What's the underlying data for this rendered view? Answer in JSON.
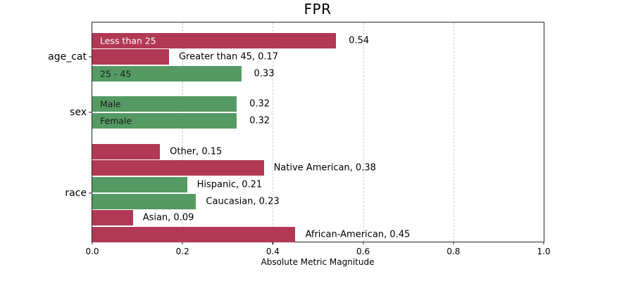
{
  "chart_data": {
    "type": "bar",
    "orientation": "horizontal",
    "title": "FPR",
    "xlabel": "Absolute Metric Magnitude",
    "xlim": [
      0,
      1
    ],
    "xtick_labels": [
      "0.0",
      "0.2",
      "0.4",
      "0.6",
      "0.8",
      "1.0"
    ],
    "grid": "dashed-vertical",
    "colors": {
      "red": "#b13954",
      "green": "#569a63",
      "grid": "#cccccc",
      "axis": "#262626",
      "text": "#000000"
    },
    "groups": [
      {
        "label": "age_cat",
        "bars": [
          {
            "name": "Less than 25",
            "value": 0.54,
            "color": "red",
            "inside_text": "Less than 25",
            "inside_text_color": "#ffffff",
            "outside_text": "0.54"
          },
          {
            "name": "Greater than 45",
            "value": 0.17,
            "color": "red",
            "inside_text": null,
            "outside_text": "Greater than 45, 0.17"
          },
          {
            "name": "25 - 45",
            "value": 0.33,
            "color": "green",
            "inside_text": "25 - 45",
            "inside_text_color": "#1a1a1a",
            "outside_text": "0.33"
          }
        ]
      },
      {
        "label": "sex",
        "bars": [
          {
            "name": "Male",
            "value": 0.32,
            "color": "green",
            "inside_text": "Male",
            "inside_text_color": "#1a1a1a",
            "outside_text": "0.32"
          },
          {
            "name": "Female",
            "value": 0.32,
            "color": "green",
            "inside_text": "Female",
            "inside_text_color": "#1a1a1a",
            "outside_text": "0.32"
          }
        ]
      },
      {
        "label": "race",
        "bars": [
          {
            "name": "Other",
            "value": 0.15,
            "color": "red",
            "inside_text": null,
            "outside_text": "Other, 0.15"
          },
          {
            "name": "Native American",
            "value": 0.38,
            "color": "red",
            "inside_text": null,
            "outside_text": "Native American, 0.38"
          },
          {
            "name": "Hispanic",
            "value": 0.21,
            "color": "green",
            "inside_text": null,
            "outside_text": "Hispanic, 0.21"
          },
          {
            "name": "Caucasian",
            "value": 0.23,
            "color": "green",
            "inside_text": null,
            "outside_text": "Caucasian, 0.23"
          },
          {
            "name": "Asian",
            "value": 0.09,
            "color": "red",
            "inside_text": null,
            "outside_text": "Asian, 0.09"
          },
          {
            "name": "African-American",
            "value": 0.45,
            "color": "red",
            "inside_text": null,
            "outside_text": "African-American, 0.45"
          }
        ]
      }
    ]
  }
}
